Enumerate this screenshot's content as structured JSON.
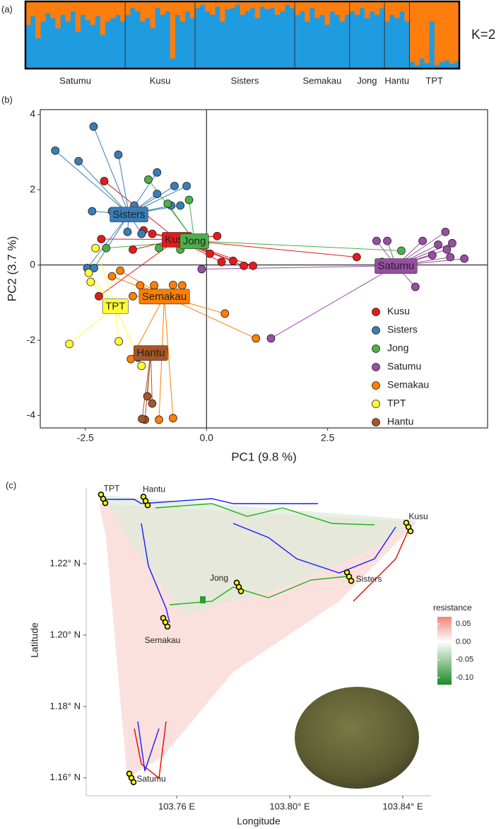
{
  "chart_data": [
    {
      "type": "structure",
      "panel_label": "(a)",
      "label": "K=2",
      "colors": [
        "#1f9be0",
        "#fd7d0d"
      ],
      "ylim": [
        0,
        1
      ],
      "groups": [
        {
          "name": "Satumu",
          "values": [
            0.35,
            0.22,
            0.55,
            0.3,
            0.18,
            0.25,
            0.4,
            0.2,
            0.3,
            0.15,
            0.45,
            0.2,
            0.28,
            0.35,
            0.22,
            0.5,
            0.3,
            0.25,
            0.2,
            0.3
          ]
        },
        {
          "name": "Kusu",
          "values": [
            0.2,
            0.1,
            0.15,
            0.3,
            0.25,
            0.4,
            0.1,
            0.2,
            0.15,
            0.85,
            0.2,
            0.3,
            0.15,
            0.25
          ]
        },
        {
          "name": "Sisters",
          "values": [
            0.1,
            0.05,
            0.15,
            0.2,
            0.08,
            0.3,
            0.12,
            0.1,
            0.05,
            0.2,
            0.15,
            0.1,
            0.25,
            0.08,
            0.12,
            0.1,
            0.2,
            0.15,
            0.05,
            0.1
          ]
        },
        {
          "name": "Semakau",
          "values": [
            0.2,
            0.15,
            0.3,
            0.1,
            0.25,
            0.2,
            0.35,
            0.15,
            0.2,
            0.3,
            0.2
          ]
        },
        {
          "name": "Jong",
          "values": [
            0.15,
            0.2,
            0.1,
            0.25,
            0.15,
            0.2,
            0.1
          ]
        },
        {
          "name": "Hantu",
          "values": [
            0.3,
            0.2,
            0.25,
            0.15,
            0.3
          ]
        },
        {
          "name": "TPT",
          "values": [
            0.9,
            0.95,
            0.85,
            0.92,
            0.3,
            0.95,
            0.9,
            0.88,
            0.93,
            0.9
          ]
        }
      ]
    },
    {
      "type": "scatter",
      "panel_label": "(b)",
      "x_label": "PC1 (9.8 %)",
      "y_label": "PC2 (3.7 %)",
      "xlim": [
        -3.43,
        5.8
      ],
      "ylim": [
        -4.33,
        4.13
      ],
      "xticks": [
        -2.5,
        {
          "value": 0,
          "label": "0.0"
        },
        2.5
      ],
      "yticks": [
        -4,
        -2,
        0,
        2,
        4
      ],
      "zero_lines": true,
      "legend": "lower-right",
      "series": [
        {
          "name": "Kusu",
          "color": "#e41a1c",
          "centroid": [
            -0.61,
            0.68
          ],
          "x": [
            -2.11,
            -2.17,
            -1.3,
            -1.52,
            -1.12,
            -0.83,
            0.22,
            -0.03,
            0.07,
            0.55,
            0.77,
            0.96,
            0.31,
            -2.22,
            3.1
          ],
          "y": [
            2.23,
            0.69,
            0.92,
            0.41,
            0.83,
            0.58,
            0.77,
            0.58,
            0.3,
            0.11,
            -0.02,
            -0.02,
            0.08,
            -0.83,
            0.21
          ]
        },
        {
          "name": "Sisters",
          "color": "#377eb8",
          "centroid": [
            -1.6,
            1.35
          ],
          "x": [
            -3.12,
            -2.33,
            -2.64,
            -1.82,
            -2.36,
            -1.95,
            -0.41,
            -1.02,
            -1.02,
            -1.34,
            -1.63,
            -2.46,
            -2.32,
            -0.73,
            -1.49,
            -0.66,
            -0.54
          ],
          "y": [
            3.04,
            3.68,
            2.76,
            2.93,
            1.43,
            1.43,
            2.1,
            2.46,
            1.89,
            0.83,
            0.88,
            -0.08,
            -0.08,
            1.58,
            1.58,
            2.1,
            1.58
          ]
        },
        {
          "name": "Jong",
          "color": "#4daf4a",
          "centroid": [
            -0.25,
            0.64
          ],
          "x": [
            -1.2,
            -0.8,
            -0.36,
            -2.07,
            -0.98,
            -0.54,
            4.02
          ],
          "y": [
            2.27,
            1.63,
            1.73,
            0.45,
            0.45,
            0.41,
            0.38
          ]
        },
        {
          "name": "Satumu",
          "color": "#984ea3",
          "centroid": [
            3.91,
            -0.02
          ],
          "x": [
            3.51,
            3.73,
            4.46,
            4.93,
            4.78,
            5.07,
            4.66,
            4.96,
            5.03,
            5.32,
            3.62,
            4.31,
            1.33,
            -0.1
          ],
          "y": [
            0.64,
            0.64,
            0.64,
            0.88,
            0.54,
            0.58,
            0.26,
            0.41,
            0.21,
            0.17,
            0.08,
            -0.58,
            -1.95,
            -0.11
          ]
        },
        {
          "name": "Semakau",
          "color": "#ff7f00",
          "centroid": [
            -0.87,
            -0.83
          ],
          "x": [
            -1.95,
            -1.78,
            -1.37,
            -1.08,
            -0.69,
            -0.5,
            -1.52,
            0.38,
            1.02,
            -1.56,
            -0.98,
            -0.69
          ],
          "y": [
            -0.3,
            -0.15,
            -0.54,
            -0.54,
            -0.53,
            -0.54,
            -0.83,
            -1.29,
            -1.95,
            -2.5,
            -4.11,
            -4.07
          ]
        },
        {
          "name": "TPT",
          "color": "#ffff33",
          "centroid": [
            -1.88,
            -1.09
          ],
          "x": [
            -2.83,
            -2.43,
            -2.39,
            -1.81,
            -2.29,
            -1.34
          ],
          "y": [
            -2.1,
            -0.21,
            -0.45,
            -2.03,
            0.45,
            -2.68
          ]
        },
        {
          "name": "Hantu",
          "color": "#a65628",
          "centroid": [
            -1.15,
            -2.33
          ],
          "x": [
            -1.22,
            -1.12,
            -1.27,
            -1.41,
            -1.33
          ],
          "y": [
            -3.49,
            -3.68,
            -4.11,
            -2.46,
            -4.09
          ]
        }
      ]
    },
    {
      "type": "map",
      "panel_label": "(c)",
      "x_label": "Longitude",
      "y_label": "Latitude",
      "xlim": [
        103.728,
        103.85
      ],
      "ylim": [
        1.155,
        1.2412
      ],
      "xticks": [
        {
          "value": 103.76,
          "label": "103.76 E"
        },
        {
          "value": 103.8,
          "label": "103.80° E"
        },
        {
          "value": 103.84,
          "label": "103.84° E"
        }
      ],
      "yticks": [
        {
          "value": 1.16,
          "label": "1.16° N"
        },
        {
          "value": 1.18,
          "label": "1.18° N"
        },
        {
          "value": 1.2,
          "label": "1.20° N"
        },
        {
          "value": 1.22,
          "label": "1.22° N"
        }
      ],
      "sites": [
        {
          "name": "TPT",
          "lon": 103.734,
          "lat": 1.2382
        },
        {
          "name": "Hantu",
          "lon": 103.749,
          "lat": 1.2376
        },
        {
          "name": "Kusu",
          "lon": 103.842,
          "lat": 1.2303
        },
        {
          "name": "Jong",
          "lon": 103.782,
          "lat": 1.2135
        },
        {
          "name": "Sisters",
          "lon": 103.821,
          "lat": 1.2164
        },
        {
          "name": "Semakau",
          "lon": 103.756,
          "lat": 1.2036
        },
        {
          "name": "Satumu",
          "lon": 103.744,
          "lat": 1.16
        }
      ],
      "colorbar": {
        "title": "resistance",
        "lim": [
          -0.12,
          0.07
        ],
        "ticks": [
          0.05,
          {
            "value": 0,
            "label": "0.00"
          },
          -0.05,
          {
            "value": -0.1,
            "label": "-0.10"
          }
        ]
      }
    }
  ]
}
